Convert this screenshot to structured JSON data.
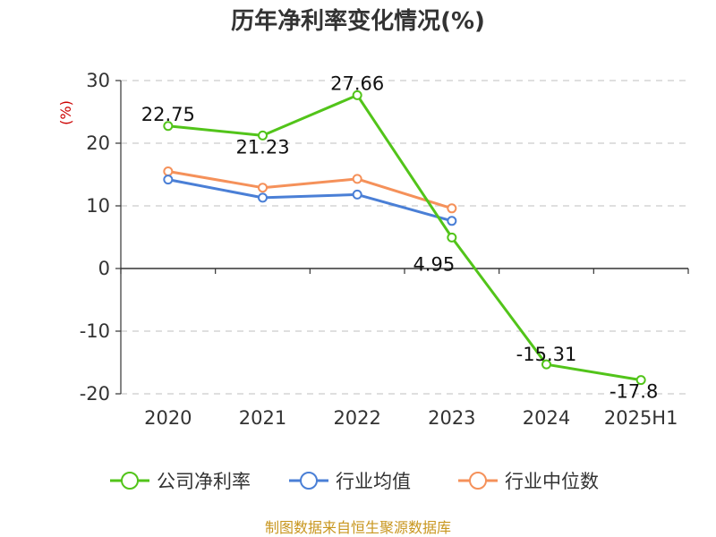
{
  "chart_data": {
    "type": "line",
    "title": "历年净利率变化情况(%)",
    "ylabel": "(%)",
    "xlabel": "",
    "categories": [
      "2020",
      "2021",
      "2022",
      "2023",
      "2024",
      "2025H1"
    ],
    "ylim": [
      -20,
      30
    ],
    "yticks": [
      30,
      20,
      10,
      0,
      -10,
      -20
    ],
    "grid": true,
    "legend_position": "bottom",
    "series": [
      {
        "name": "公司净利率",
        "color": "#52c41a",
        "values": [
          22.75,
          21.23,
          27.66,
          4.95,
          -15.31,
          -17.8
        ],
        "labels": [
          "22.75",
          "21.23",
          "27.66",
          "4.95",
          "-15.31",
          "-17.8"
        ]
      },
      {
        "name": "行业均值",
        "color": "#4a7fd6",
        "values": [
          14.2,
          11.3,
          11.8,
          7.6,
          null,
          null
        ]
      },
      {
        "name": "行业中位数",
        "color": "#f5915a",
        "values": [
          15.5,
          12.9,
          14.3,
          9.6,
          null,
          null
        ]
      }
    ]
  },
  "colors": {
    "unit_label": "#cc0000",
    "source_text": "#c8961e"
  },
  "source": "制图数据来自恒生聚源数据库"
}
